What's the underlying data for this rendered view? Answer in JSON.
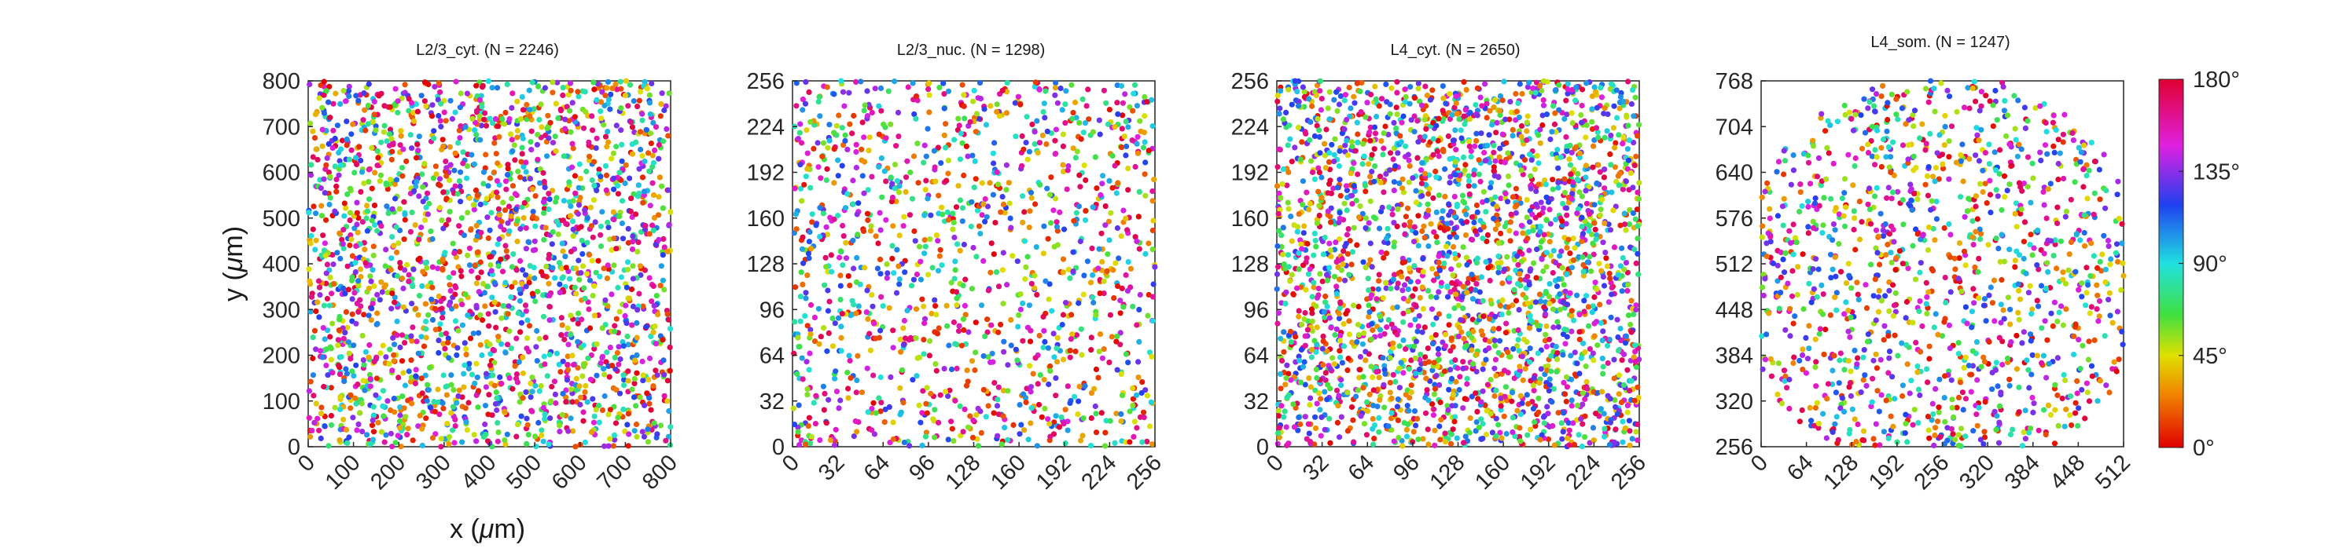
{
  "chart_data": [
    {
      "type": "scatter",
      "title": "L2/3_cyt. (N = 2246)",
      "n_points": 2246,
      "xlabel": "x (μm)",
      "ylabel": "y (μm)",
      "xlim": [
        0,
        832
      ],
      "ylim": [
        0,
        832
      ],
      "xticks": [
        "0",
        "100",
        "200",
        "300",
        "400",
        "500",
        "600",
        "700",
        "800"
      ],
      "yticks": [
        "0",
        "100",
        "200",
        "300",
        "400",
        "500",
        "600",
        "700",
        "800"
      ],
      "seed": 11,
      "color_encoding": "preferred orientation 0–180°",
      "points_note": "points are randomly scattered; orientation colors uniformly mixed"
    },
    {
      "type": "scatter",
      "title": "L2/3_nuc. (N = 1298)",
      "n_points": 1298,
      "xlim": [
        0,
        256
      ],
      "ylim": [
        0,
        256
      ],
      "xticks": [
        "0",
        "32",
        "64",
        "96",
        "128",
        "160",
        "192",
        "224",
        "256"
      ],
      "yticks": [
        "0",
        "32",
        "64",
        "96",
        "128",
        "160",
        "192",
        "224",
        "256"
      ],
      "seed": 23
    },
    {
      "type": "scatter",
      "title": "L4_cyt. (N = 2650)",
      "n_points": 2650,
      "xlim": [
        0,
        256
      ],
      "ylim": [
        0,
        256
      ],
      "xticks": [
        "0",
        "32",
        "64",
        "96",
        "128",
        "160",
        "192",
        "224",
        "256"
      ],
      "yticks": [
        "0",
        "32",
        "64",
        "96",
        "128",
        "160",
        "192",
        "224",
        "256"
      ],
      "seed": 37
    },
    {
      "type": "scatter",
      "title": "L4_som. (N = 1247)",
      "n_points": 1247,
      "xlim": [
        0,
        512
      ],
      "ylim": [
        256,
        768
      ],
      "xticks": [
        "0",
        "64",
        "128",
        "192",
        "256",
        "320",
        "384",
        "448",
        "512"
      ],
      "yticks": [
        "256",
        "320",
        "384",
        "448",
        "512",
        "576",
        "640",
        "704",
        "768"
      ],
      "seed": 53
    }
  ],
  "colorbar": {
    "range": [
      0,
      180
    ],
    "ticks": [
      {
        "value": 0,
        "label": "0°"
      },
      {
        "value": 45,
        "label": "45°"
      },
      {
        "value": 90,
        "label": "90°"
      },
      {
        "value": 135,
        "label": "135°"
      },
      {
        "value": 180,
        "label": "180°"
      }
    ],
    "colors": [
      "#e00000",
      "#f0a000",
      "#40e040",
      "#20e0e0",
      "#2020e0",
      "#e020e0",
      "#e00030"
    ]
  }
}
